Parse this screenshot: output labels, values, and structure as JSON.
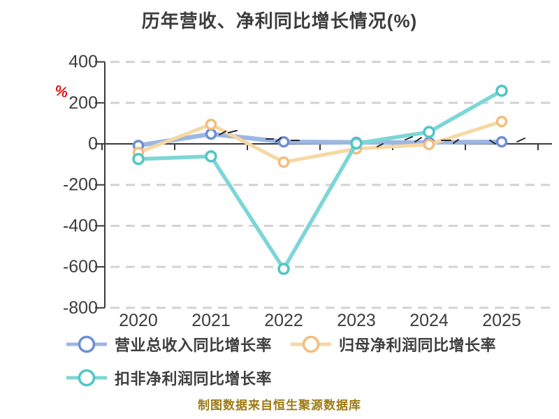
{
  "title": {
    "text": "历年营收、净利同比增长情况(%)"
  },
  "chart_data": {
    "type": "line",
    "title": "历年营收、净利同比增长情况(%)",
    "categories": [
      "2020",
      "2021",
      "2022",
      "2023",
      "2024",
      "2025"
    ],
    "series": [
      {
        "name": "营业总收入同比增长率",
        "color": "#9DB7E3",
        "marker_ring": "#6E8ED6",
        "line_width": 6.5,
        "marker_radius": 6.5,
        "values": [
          -8,
          48,
          10,
          7,
          7,
          10
        ]
      },
      {
        "name": "归母净利润同比增长率",
        "color": "#F7D7A2",
        "marker_ring": "#F2BE7C",
        "line_width": 5,
        "marker_radius": 6.5,
        "values": [
          -42,
          95,
          -89,
          -24,
          -3,
          109
        ]
      },
      {
        "name": "扣非净利润同比增长率",
        "color": "#7DD6D6",
        "marker_ring": "#4FC6C6",
        "line_width": 5.5,
        "marker_radius": 7,
        "values": [
          -74,
          -61,
          -610,
          2,
          58,
          259
        ]
      }
    ],
    "xlabel": "",
    "ylabel": "%",
    "ylim": [
      -800,
      400
    ],
    "yticks": [
      400,
      200,
      0,
      -200,
      -400,
      -600,
      -800
    ],
    "grid": "horizontal dashed, solid dark line at zero",
    "legend_position": "bottom-left, two rows"
  },
  "y_axis": {
    "unit_label": "%",
    "unit_color": "#E01212",
    "tick_labels": [
      "400",
      "200",
      "0",
      "-200",
      "-400",
      "-600",
      "-800"
    ]
  },
  "x_axis": {
    "tick_labels": [
      "2020",
      "2021",
      "2022",
      "2023",
      "2024",
      "2025"
    ]
  },
  "caption": {
    "text": "制图数据来自恒生聚源数据库",
    "color": "#9C7A12"
  },
  "colors": {
    "background": "#FFFFFF",
    "title_text": "#3C3C3C",
    "axis_line": "#3A3A3A",
    "gridline": "#D2D2D2",
    "tick_label_text": "#3D3D3D",
    "scribble_marks": "#2B2B2B"
  }
}
